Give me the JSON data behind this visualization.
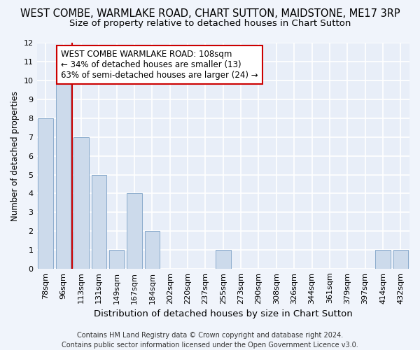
{
  "title": "WEST COMBE, WARMLAKE ROAD, CHART SUTTON, MAIDSTONE, ME17 3RP",
  "subtitle": "Size of property relative to detached houses in Chart Sutton",
  "xlabel": "Distribution of detached houses by size in Chart Sutton",
  "ylabel": "Number of detached properties",
  "categories": [
    "78sqm",
    "96sqm",
    "113sqm",
    "131sqm",
    "149sqm",
    "167sqm",
    "184sqm",
    "202sqm",
    "220sqm",
    "237sqm",
    "255sqm",
    "273sqm",
    "290sqm",
    "308sqm",
    "326sqm",
    "344sqm",
    "361sqm",
    "379sqm",
    "397sqm",
    "414sqm",
    "432sqm"
  ],
  "values": [
    8,
    10,
    7,
    5,
    1,
    4,
    2,
    0,
    0,
    0,
    1,
    0,
    0,
    0,
    0,
    0,
    0,
    0,
    0,
    1,
    1
  ],
  "bar_color": "#ccdaeb",
  "bar_edge_color": "#8aabcc",
  "vline_x_pos": 1.5,
  "vline_color": "#cc0000",
  "annotation_text": "WEST COMBE WARMLAKE ROAD: 108sqm\n← 34% of detached houses are smaller (13)\n63% of semi-detached houses are larger (24) →",
  "annotation_box_color": "#ffffff",
  "annotation_box_edge": "#cc0000",
  "ylim": [
    0,
    12
  ],
  "yticks": [
    0,
    1,
    2,
    3,
    4,
    5,
    6,
    7,
    8,
    9,
    10,
    11,
    12
  ],
  "footer": "Contains HM Land Registry data © Crown copyright and database right 2024.\nContains public sector information licensed under the Open Government Licence v3.0.",
  "background_color": "#f0f4fb",
  "plot_bg_color": "#e8eef8",
  "grid_color": "#ffffff",
  "title_fontsize": 10.5,
  "subtitle_fontsize": 9.5,
  "xlabel_fontsize": 9.5,
  "ylabel_fontsize": 8.5,
  "tick_fontsize": 8.0,
  "annot_fontsize": 8.5,
  "footer_fontsize": 7.0
}
